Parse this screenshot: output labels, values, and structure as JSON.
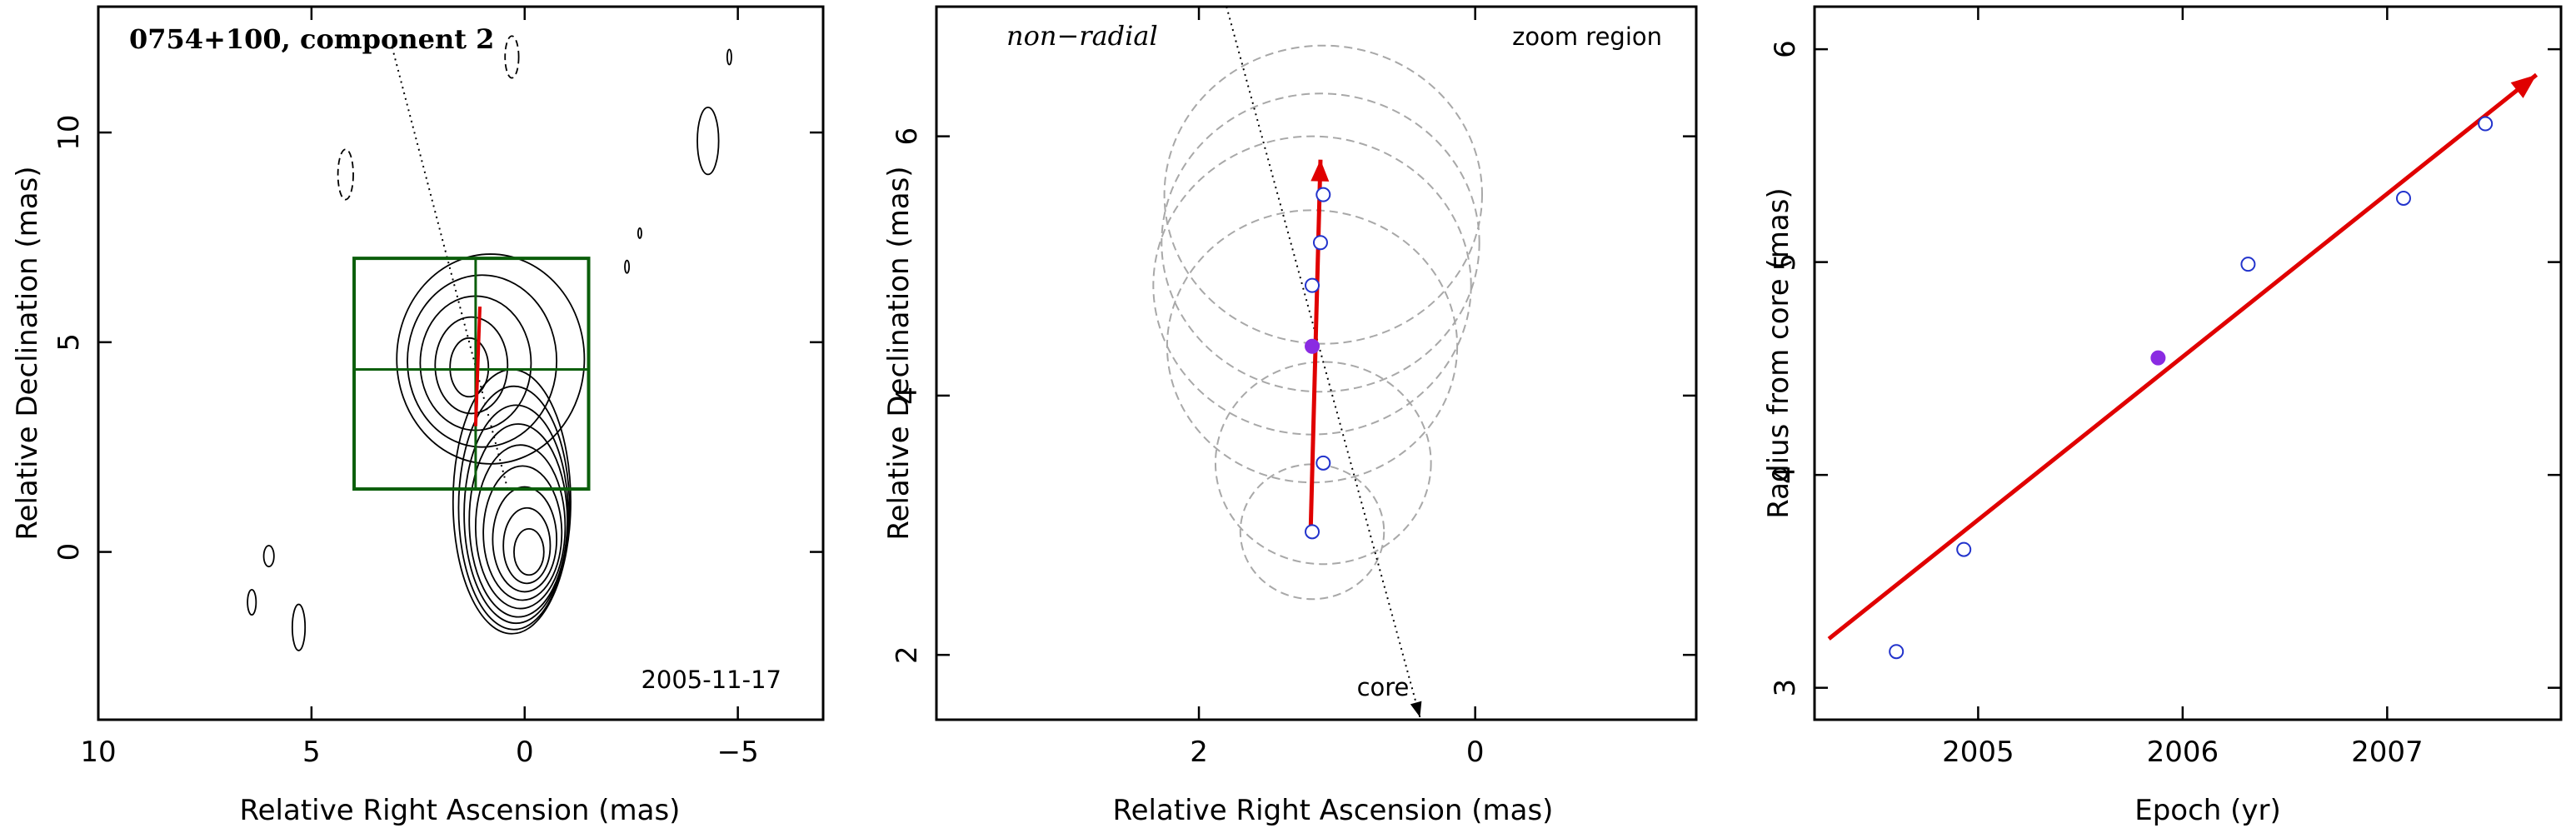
{
  "colors": {
    "axis": "#000000",
    "contour": "#000000",
    "box": "#0b5e0b",
    "trajectory": "#e00000",
    "open_point": "#2233cc",
    "filled_point": "#8a2be2",
    "beam_circle": "#a8a8a8"
  },
  "chart_data": [
    {
      "type": "contour",
      "panel": "map",
      "xlabel": "Relative Right Ascension (mas)",
      "ylabel": "Relative Declination (mas)",
      "xlim": [
        10,
        -7
      ],
      "ylim": [
        -4,
        13
      ],
      "xticks": [
        10,
        5,
        0,
        -5
      ],
      "yticks": [
        0,
        5,
        10
      ],
      "annotation_title": "0754+100, component 2",
      "annotation_date": "2005-11-17",
      "zoom_box": {
        "x_range": [
          4.0,
          -1.5
        ],
        "y_range": [
          1.5,
          7.0
        ]
      },
      "crosshair": {
        "x": 1.15,
        "y": 4.35
      },
      "component_path": [
        {
          "x": 1.15,
          "y": 3.0
        },
        {
          "x": 1.05,
          "y": 5.85
        }
      ],
      "core_direction_line": [
        {
          "x": 0.4,
          "y": 1.5
        },
        {
          "x": 3.1,
          "y": 12.0
        }
      ]
    },
    {
      "type": "scatter",
      "panel": "zoom",
      "xlabel": "Relative Right Ascension (mas)",
      "ylabel": "Relative Declination (mas)",
      "xlim": [
        3.9,
        -1.6
      ],
      "ylim": [
        1.5,
        7.0
      ],
      "xticks": [
        2,
        0
      ],
      "yticks": [
        2,
        4,
        6
      ],
      "annotation_motion": "non−radial",
      "annotation_region": "zoom region",
      "annotation_core": "core",
      "points": [
        {
          "x": 1.18,
          "y": 2.95,
          "r": 0.52,
          "filled": false
        },
        {
          "x": 1.1,
          "y": 3.48,
          "r": 0.78,
          "filled": false
        },
        {
          "x": 1.18,
          "y": 4.38,
          "r": 1.05,
          "filled": true
        },
        {
          "x": 1.18,
          "y": 4.85,
          "r": 1.15,
          "filled": false
        },
        {
          "x": 1.12,
          "y": 5.18,
          "r": 1.15,
          "filled": false
        },
        {
          "x": 1.1,
          "y": 5.55,
          "r": 1.15,
          "filled": false
        }
      ],
      "trend_arrow": [
        {
          "x": 1.19,
          "y": 3.0
        },
        {
          "x": 1.12,
          "y": 5.82
        }
      ],
      "core_direction_line": [
        {
          "x": 1.8,
          "y": 7.0
        },
        {
          "x": 0.4,
          "y": 1.52
        }
      ]
    },
    {
      "type": "scatter",
      "panel": "radius-vs-epoch",
      "xlabel": "Epoch (yr)",
      "ylabel": "Radius from core (mas)",
      "xlim": [
        2004.2,
        2007.85
      ],
      "ylim": [
        2.85,
        6.2
      ],
      "xticks": [
        2005,
        2006,
        2007
      ],
      "yticks": [
        3,
        4,
        5,
        6
      ],
      "points": [
        {
          "x": 2004.6,
          "y": 3.17,
          "filled": false
        },
        {
          "x": 2004.93,
          "y": 3.65,
          "filled": false
        },
        {
          "x": 2005.88,
          "y": 4.55,
          "filled": true
        },
        {
          "x": 2006.32,
          "y": 4.99,
          "filled": false
        },
        {
          "x": 2007.08,
          "y": 5.3,
          "filled": false
        },
        {
          "x": 2007.48,
          "y": 5.65,
          "filled": false
        }
      ],
      "fit_line": [
        {
          "x": 2004.27,
          "y": 3.23
        },
        {
          "x": 2007.73,
          "y": 5.88
        }
      ]
    }
  ]
}
